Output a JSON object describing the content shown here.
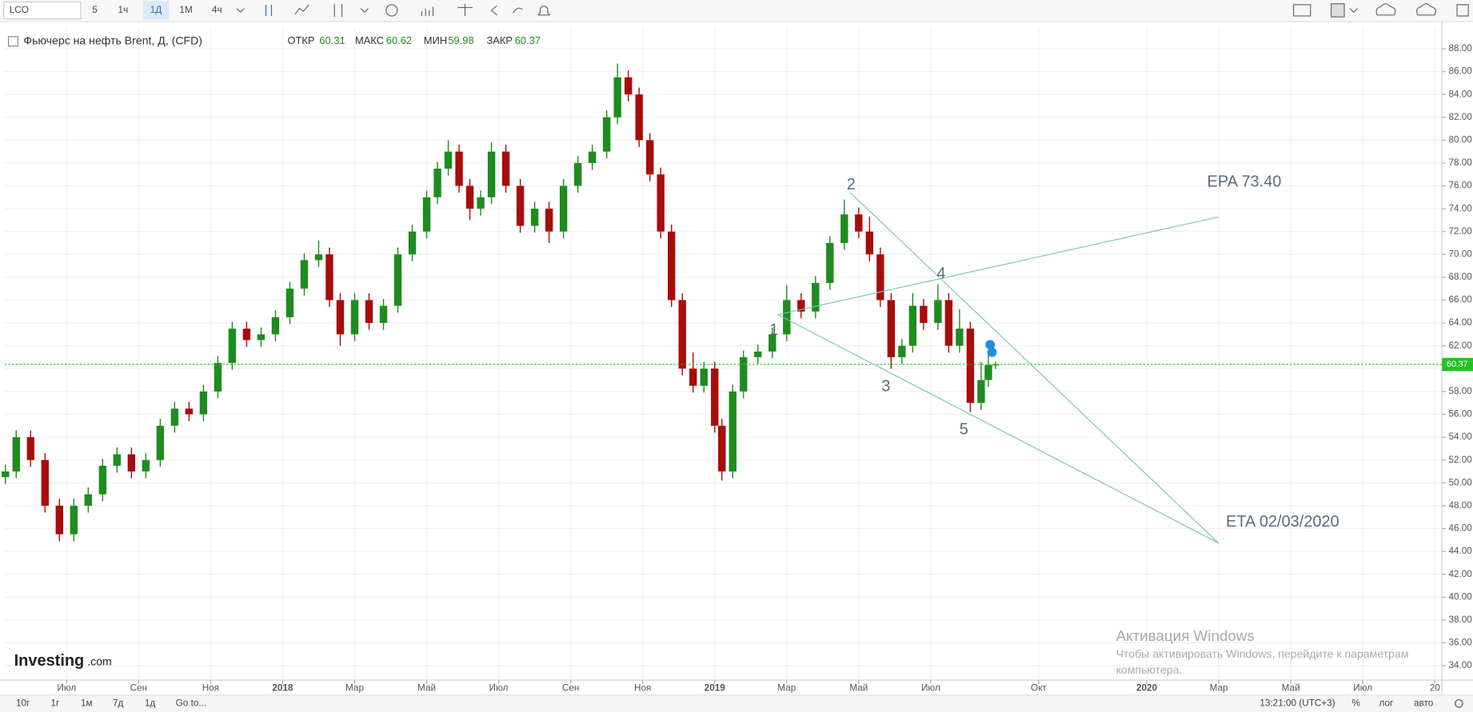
{
  "toolbar": {
    "symbol": "LCO",
    "intervals": [
      "5",
      "1ч",
      "1Д",
      "1М",
      "4ч"
    ]
  },
  "bottom_bar": {
    "ranges": [
      "10г",
      "1г",
      "1м",
      "7д",
      "1д"
    ],
    "goto": "Go to...",
    "time": "13:21:00 (UTC+3)",
    "percent": "%",
    "log": "лог",
    "auto": "авто"
  },
  "watermark": {
    "brand": "Investing",
    "suffix": ".com"
  },
  "windows_activation": {
    "title": "Активация Windows",
    "line1": "Чтобы активировать Windows, перейдите к параметрам",
    "line2": "компьютера."
  },
  "chart_data": {
    "type": "candlestick",
    "title": "Фьючерс на нефть Brent, Д, (CFD)",
    "ohlc_labels": {
      "open": "ОТКР",
      "high": "МАКС",
      "low": "МИН",
      "close": "ЗАКР"
    },
    "up_color": "#1e8c1e",
    "down_color": "#a80c0c",
    "last_price_color": "#22c322",
    "x": [
      4.3,
      4.6,
      5.0,
      5.4,
      5.8,
      6.2,
      6.6,
      7.0,
      7.4,
      7.8,
      8.2,
      8.6,
      9.0,
      9.4,
      9.8,
      10.2,
      10.6,
      11.0,
      11.4,
      11.8,
      12.2,
      12.6,
      13.0,
      13.3,
      13.6,
      14.0,
      14.4,
      14.8,
      15.2,
      15.6,
      16.0,
      16.3,
      16.6,
      16.9,
      17.2,
      17.5,
      17.8,
      18.2,
      18.6,
      19.0,
      19.4,
      19.8,
      20.2,
      20.6,
      21.0,
      21.3,
      21.6,
      21.9,
      22.2,
      22.5,
      22.8,
      23.1,
      23.4,
      23.7,
      24.0,
      24.2,
      24.5,
      24.8,
      25.2,
      25.6,
      26.0,
      26.4,
      26.8,
      27.2,
      27.6,
      28.0,
      28.3,
      28.6,
      28.9,
      29.2,
      29.5,
      29.8,
      30.2,
      30.5,
      30.8,
      31.1,
      31.4,
      31.6,
      31.8
    ],
    "open": [
      50.5,
      51.0,
      54.0,
      52.0,
      48.0,
      45.5,
      48.0,
      49.0,
      51.5,
      52.5,
      51.0,
      52.0,
      55.0,
      56.5,
      56.0,
      58.0,
      60.5,
      63.5,
      62.5,
      63.0,
      64.5,
      67.0,
      69.5,
      70.0,
      66.0,
      63.0,
      66.0,
      64.0,
      65.5,
      70.0,
      72.0,
      75.0,
      77.5,
      79.0,
      76.0,
      74.0,
      75.0,
      79.0,
      76.0,
      72.5,
      74.0,
      72.0,
      76.0,
      78.0,
      79.0,
      82.0,
      85.5,
      84.0,
      80.0,
      77.0,
      72.0,
      66.0,
      60.0,
      58.5,
      60.0,
      55.0,
      51.0,
      58.0,
      61.0,
      61.5,
      63.0,
      66.0,
      65.0,
      67.5,
      71.0,
      73.5,
      72.0,
      70.0,
      66.0,
      61.0,
      62.0,
      65.5,
      64.0,
      66.0,
      62.0,
      63.5,
      57.0,
      59.0,
      60.31
    ],
    "high": [
      51.6,
      54.6,
      54.6,
      52.6,
      48.6,
      48.6,
      49.6,
      52.1,
      53.1,
      53.1,
      52.6,
      55.6,
      57.1,
      57.1,
      58.6,
      61.1,
      64.1,
      64.1,
      63.6,
      65.1,
      67.6,
      70.1,
      71.2,
      70.6,
      66.6,
      66.6,
      66.6,
      66.1,
      70.6,
      72.6,
      75.6,
      78.1,
      80.0,
      79.6,
      76.6,
      75.6,
      79.8,
      79.6,
      76.6,
      74.6,
      74.6,
      76.6,
      78.6,
      79.6,
      82.6,
      86.7,
      86.1,
      84.6,
      80.6,
      77.6,
      72.6,
      66.6,
      61.4,
      60.6,
      60.6,
      55.6,
      58.6,
      61.6,
      62.1,
      63.6,
      67.3,
      66.6,
      68.1,
      71.6,
      74.8,
      74.1,
      73.3,
      70.6,
      66.6,
      62.6,
      66.6,
      66.1,
      67.4,
      66.6,
      65.2,
      64.1,
      60.6,
      61.2,
      60.62
    ],
    "low": [
      49.9,
      50.4,
      51.4,
      47.4,
      44.9,
      44.9,
      47.4,
      48.4,
      50.9,
      50.4,
      50.4,
      51.4,
      54.4,
      55.4,
      55.4,
      57.4,
      59.9,
      61.9,
      61.9,
      62.4,
      63.9,
      66.4,
      68.9,
      65.4,
      62.0,
      62.4,
      63.4,
      63.4,
      64.9,
      69.4,
      71.4,
      74.4,
      76.9,
      75.4,
      73.0,
      73.4,
      74.4,
      75.4,
      71.9,
      71.9,
      71.0,
      71.4,
      75.4,
      77.4,
      78.4,
      81.4,
      83.4,
      79.4,
      76.4,
      71.4,
      65.4,
      59.4,
      57.9,
      57.9,
      54.4,
      50.2,
      50.4,
      57.4,
      60.4,
      60.9,
      62.4,
      64.4,
      64.4,
      66.9,
      70.4,
      71.4,
      69.4,
      65.4,
      60.0,
      60.4,
      61.4,
      63.4,
      63.4,
      61.4,
      61.4,
      56.2,
      56.4,
      58.4,
      59.98
    ],
    "close": [
      51.0,
      54.0,
      52.0,
      48.0,
      45.5,
      48.0,
      49.0,
      51.5,
      52.5,
      51.0,
      52.0,
      55.0,
      56.5,
      56.0,
      58.0,
      60.5,
      63.5,
      62.5,
      63.0,
      64.5,
      67.0,
      69.5,
      70.0,
      66.0,
      63.0,
      66.0,
      64.0,
      65.5,
      70.0,
      72.0,
      75.0,
      77.5,
      79.0,
      76.0,
      74.0,
      75.0,
      79.0,
      76.0,
      72.5,
      74.0,
      72.0,
      76.0,
      78.0,
      79.0,
      82.0,
      85.5,
      84.0,
      80.0,
      77.0,
      72.0,
      66.0,
      60.0,
      58.5,
      60.0,
      55.0,
      51.0,
      58.0,
      61.0,
      61.5,
      63.0,
      66.0,
      65.0,
      67.5,
      71.0,
      73.5,
      72.0,
      70.0,
      66.0,
      61.0,
      62.0,
      65.5,
      64.0,
      66.0,
      62.0,
      63.5,
      57.0,
      59.0,
      60.31,
      60.37
    ],
    "xlim": [
      4.28,
      44.2
    ],
    "xticks": [
      {
        "value": 6,
        "label": "Июл"
      },
      {
        "value": 8,
        "label": "Сен"
      },
      {
        "value": 10,
        "label": "Ноя"
      },
      {
        "value": 12,
        "label": "2018"
      },
      {
        "value": 14,
        "label": "Мар"
      },
      {
        "value": 16,
        "label": "Май"
      },
      {
        "value": 18,
        "label": "Июл"
      },
      {
        "value": 20,
        "label": "Сен"
      },
      {
        "value": 22,
        "label": "Ноя"
      },
      {
        "value": 24,
        "label": "2019"
      },
      {
        "value": 26,
        "label": "Мар"
      },
      {
        "value": 28,
        "label": "Май"
      },
      {
        "value": 30,
        "label": "Июл"
      },
      {
        "value": 33,
        "label": "Окт"
      },
      {
        "value": 36,
        "label": "2020"
      },
      {
        "value": 38,
        "label": "Мар"
      },
      {
        "value": 40,
        "label": "Май"
      },
      {
        "value": 42,
        "label": "Июл"
      },
      {
        "value": 44,
        "label": "20"
      }
    ],
    "ylim": [
      32.74,
      89.8
    ],
    "yticks": [
      {
        "value": 34,
        "label": "34.00"
      },
      {
        "value": 36,
        "label": "36.00"
      },
      {
        "value": 38,
        "label": "38.00"
      },
      {
        "value": 40,
        "label": "40.00"
      },
      {
        "value": 42,
        "label": "42.00"
      },
      {
        "value": 44,
        "label": "44.00"
      },
      {
        "value": 46,
        "label": "46.00"
      },
      {
        "value": 48,
        "label": "48.00"
      },
      {
        "value": 50,
        "label": "50.00"
      },
      {
        "value": 52,
        "label": "52.00"
      },
      {
        "value": 54,
        "label": "54.00"
      },
      {
        "value": 56,
        "label": "56.00"
      },
      {
        "value": 58,
        "label": "58.00"
      },
      {
        "value": 60,
        "label": "60.00"
      },
      {
        "value": 62,
        "label": "62.00"
      },
      {
        "value": 64,
        "label": "64.00"
      },
      {
        "value": 66,
        "label": "66.00"
      },
      {
        "value": 68,
        "label": "68.00"
      },
      {
        "value": 70,
        "label": "70.00"
      },
      {
        "value": 72,
        "label": "72.00"
      },
      {
        "value": 74,
        "label": "74.00"
      },
      {
        "value": 76,
        "label": "76.00"
      },
      {
        "value": 78,
        "label": "78.00"
      },
      {
        "value": 80,
        "label": "80.00"
      },
      {
        "value": 82,
        "label": "82.00"
      },
      {
        "value": 84,
        "label": "84.00"
      },
      {
        "value": 86,
        "label": "86.00"
      },
      {
        "value": 88,
        "label": "88.00"
      }
    ],
    "grid": true,
    "wave_labels": [
      "1",
      "2",
      "3",
      "4",
      "5"
    ],
    "annotations": [
      "EPA 73.40",
      "ETA 02/03/2020"
    ]
  }
}
